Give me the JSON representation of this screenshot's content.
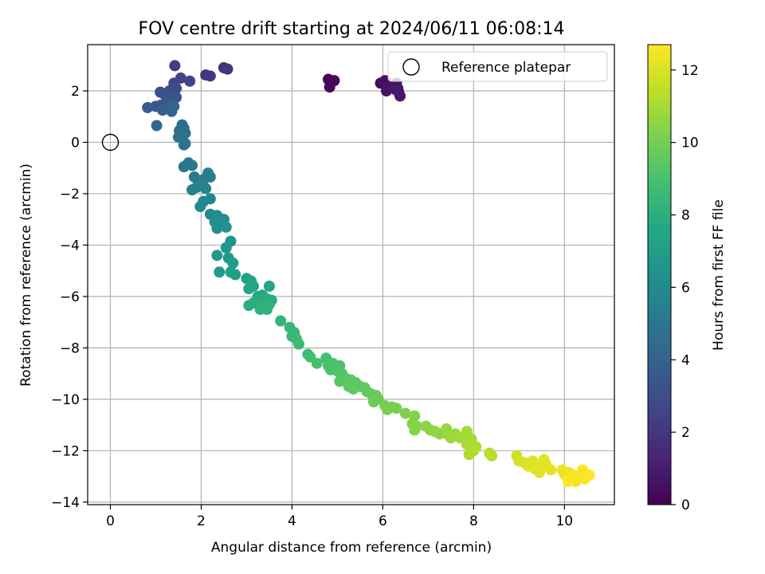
{
  "chart_data": {
    "type": "scatter",
    "title": "FOV centre drift starting at 2024/06/11 06:08:14",
    "xlabel": "Angular distance from reference (arcmin)",
    "ylabel": "Rotation from reference (arcmin)",
    "xlim": [
      -0.5,
      11.1
    ],
    "ylim": [
      -14.1,
      3.8
    ],
    "x_ticks": [
      0,
      2,
      4,
      6,
      8,
      10
    ],
    "y_ticks": [
      -14,
      -12,
      -10,
      -8,
      -6,
      -4,
      -2,
      0,
      2
    ],
    "grid": true,
    "legend": {
      "placement": "top-right",
      "entries": [
        {
          "label": "Reference platepar",
          "marker": "open-circle"
        }
      ]
    },
    "reference_point": {
      "x": 0,
      "y": 0
    },
    "colorbar": {
      "label": "Hours from first FF file",
      "colormap": "viridis",
      "range": [
        0,
        12.7
      ],
      "ticks": [
        0,
        2,
        4,
        6,
        8,
        10,
        12
      ]
    },
    "points": [
      {
        "x": 4.8,
        "y": 2.45,
        "c": 0.1
      },
      {
        "x": 4.87,
        "y": 2.35,
        "c": 0.2
      },
      {
        "x": 4.93,
        "y": 2.4,
        "c": 0.2
      },
      {
        "x": 4.83,
        "y": 2.15,
        "c": 0.3
      },
      {
        "x": 5.95,
        "y": 2.3,
        "c": 0.4
      },
      {
        "x": 6.05,
        "y": 2.4,
        "c": 0.5
      },
      {
        "x": 6.1,
        "y": 2.2,
        "c": 0.5
      },
      {
        "x": 6.08,
        "y": 2.0,
        "c": 0.6
      },
      {
        "x": 6.25,
        "y": 2.2,
        "c": 0.6
      },
      {
        "x": 6.3,
        "y": 2.3,
        "c": 0.7
      },
      {
        "x": 6.33,
        "y": 2.1,
        "c": 0.7
      },
      {
        "x": 6.35,
        "y": 1.95,
        "c": 0.8
      },
      {
        "x": 6.38,
        "y": 1.8,
        "c": 0.8
      },
      {
        "x": 6.28,
        "y": 2.05,
        "c": 0.9
      },
      {
        "x": 2.5,
        "y": 2.9,
        "c": 1.8
      },
      {
        "x": 2.58,
        "y": 2.85,
        "c": 1.9
      },
      {
        "x": 2.1,
        "y": 2.62,
        "c": 2.0
      },
      {
        "x": 2.2,
        "y": 2.58,
        "c": 2.1
      },
      {
        "x": 1.42,
        "y": 2.98,
        "c": 2.3
      },
      {
        "x": 1.55,
        "y": 2.5,
        "c": 2.5
      },
      {
        "x": 1.75,
        "y": 2.38,
        "c": 2.6
      },
      {
        "x": 1.4,
        "y": 2.3,
        "c": 2.7
      },
      {
        "x": 1.45,
        "y": 2.1,
        "c": 2.8
      },
      {
        "x": 1.3,
        "y": 2.0,
        "c": 2.9
      },
      {
        "x": 1.1,
        "y": 1.95,
        "c": 3.0
      },
      {
        "x": 1.2,
        "y": 1.85,
        "c": 3.1
      },
      {
        "x": 1.35,
        "y": 1.8,
        "c": 3.2
      },
      {
        "x": 1.45,
        "y": 1.75,
        "c": 3.3
      },
      {
        "x": 1.0,
        "y": 1.4,
        "c": 3.4
      },
      {
        "x": 1.12,
        "y": 1.45,
        "c": 3.5
      },
      {
        "x": 1.25,
        "y": 1.55,
        "c": 3.6
      },
      {
        "x": 0.82,
        "y": 1.35,
        "c": 3.7
      },
      {
        "x": 1.15,
        "y": 1.25,
        "c": 3.8
      },
      {
        "x": 1.28,
        "y": 1.35,
        "c": 3.9
      },
      {
        "x": 1.35,
        "y": 1.2,
        "c": 4.0
      },
      {
        "x": 1.4,
        "y": 1.4,
        "c": 4.1
      },
      {
        "x": 1.02,
        "y": 0.65,
        "c": 4.3
      },
      {
        "x": 1.52,
        "y": 0.45,
        "c": 4.4
      },
      {
        "x": 1.58,
        "y": 0.68,
        "c": 4.5
      },
      {
        "x": 1.62,
        "y": 0.55,
        "c": 4.5
      },
      {
        "x": 1.65,
        "y": 0.35,
        "c": 4.6
      },
      {
        "x": 1.5,
        "y": 0.2,
        "c": 4.7
      },
      {
        "x": 1.62,
        "y": -0.1,
        "c": 4.8
      },
      {
        "x": 1.65,
        "y": -0.05,
        "c": 4.9
      },
      {
        "x": 1.62,
        "y": -0.95,
        "c": 5.0
      },
      {
        "x": 1.72,
        "y": -0.8,
        "c": 5.1
      },
      {
        "x": 1.8,
        "y": -0.9,
        "c": 5.1
      },
      {
        "x": 1.85,
        "y": -1.35,
        "c": 5.2
      },
      {
        "x": 2.05,
        "y": -1.45,
        "c": 5.3
      },
      {
        "x": 2.15,
        "y": -1.2,
        "c": 5.4
      },
      {
        "x": 2.2,
        "y": -1.35,
        "c": 5.4
      },
      {
        "x": 2.0,
        "y": -1.6,
        "c": 5.5
      },
      {
        "x": 1.8,
        "y": -1.85,
        "c": 5.6
      },
      {
        "x": 1.9,
        "y": -1.75,
        "c": 5.6
      },
      {
        "x": 2.1,
        "y": -1.8,
        "c": 5.7
      },
      {
        "x": 2.2,
        "y": -2.2,
        "c": 5.8
      },
      {
        "x": 2.05,
        "y": -2.3,
        "c": 5.9
      },
      {
        "x": 1.98,
        "y": -2.5,
        "c": 5.9
      },
      {
        "x": 2.2,
        "y": -2.8,
        "c": 6.0
      },
      {
        "x": 2.35,
        "y": -2.85,
        "c": 6.1
      },
      {
        "x": 2.4,
        "y": -2.95,
        "c": 6.1
      },
      {
        "x": 2.5,
        "y": -3.0,
        "c": 6.2
      },
      {
        "x": 2.3,
        "y": -3.1,
        "c": 6.2
      },
      {
        "x": 2.45,
        "y": -3.2,
        "c": 6.3
      },
      {
        "x": 2.35,
        "y": -3.35,
        "c": 6.3
      },
      {
        "x": 2.55,
        "y": -3.3,
        "c": 6.4
      },
      {
        "x": 2.65,
        "y": -3.85,
        "c": 6.5
      },
      {
        "x": 2.55,
        "y": -4.1,
        "c": 6.6
      },
      {
        "x": 2.6,
        "y": -4.5,
        "c": 6.7
      },
      {
        "x": 2.35,
        "y": -4.4,
        "c": 6.8
      },
      {
        "x": 2.4,
        "y": -5.05,
        "c": 6.9
      },
      {
        "x": 2.7,
        "y": -4.7,
        "c": 7.0
      },
      {
        "x": 2.65,
        "y": -5.05,
        "c": 7.1
      },
      {
        "x": 2.75,
        "y": -5.15,
        "c": 7.1
      },
      {
        "x": 3.0,
        "y": -5.3,
        "c": 7.3
      },
      {
        "x": 3.1,
        "y": -5.4,
        "c": 7.4
      },
      {
        "x": 3.05,
        "y": -5.7,
        "c": 7.5
      },
      {
        "x": 3.15,
        "y": -5.6,
        "c": 7.5
      },
      {
        "x": 3.5,
        "y": -5.6,
        "c": 7.6
      },
      {
        "x": 3.25,
        "y": -6.0,
        "c": 7.7
      },
      {
        "x": 3.35,
        "y": -5.95,
        "c": 7.7
      },
      {
        "x": 3.45,
        "y": -6.1,
        "c": 7.8
      },
      {
        "x": 3.55,
        "y": -6.15,
        "c": 7.8
      },
      {
        "x": 3.15,
        "y": -6.25,
        "c": 7.9
      },
      {
        "x": 3.3,
        "y": -6.35,
        "c": 7.9
      },
      {
        "x": 3.4,
        "y": -6.4,
        "c": 8.0
      },
      {
        "x": 3.05,
        "y": -6.35,
        "c": 8.0
      },
      {
        "x": 3.5,
        "y": -6.3,
        "c": 8.1
      },
      {
        "x": 3.3,
        "y": -6.5,
        "c": 8.1
      },
      {
        "x": 3.45,
        "y": -6.5,
        "c": 8.1
      },
      {
        "x": 3.75,
        "y": -6.95,
        "c": 8.3
      },
      {
        "x": 3.95,
        "y": -7.2,
        "c": 8.4
      },
      {
        "x": 4.05,
        "y": -7.4,
        "c": 8.5
      },
      {
        "x": 4.0,
        "y": -7.55,
        "c": 8.5
      },
      {
        "x": 4.1,
        "y": -7.65,
        "c": 8.6
      },
      {
        "x": 4.15,
        "y": -7.85,
        "c": 8.6
      },
      {
        "x": 4.35,
        "y": -8.25,
        "c": 8.7
      },
      {
        "x": 4.4,
        "y": -8.35,
        "c": 8.8
      },
      {
        "x": 4.55,
        "y": -8.6,
        "c": 8.9
      },
      {
        "x": 4.75,
        "y": -8.4,
        "c": 8.9
      },
      {
        "x": 4.8,
        "y": -8.7,
        "c": 9.0
      },
      {
        "x": 4.85,
        "y": -8.85,
        "c": 9.0
      },
      {
        "x": 4.9,
        "y": -8.6,
        "c": 9.1
      },
      {
        "x": 5.05,
        "y": -8.7,
        "c": 9.1
      },
      {
        "x": 5.0,
        "y": -8.9,
        "c": 9.2
      },
      {
        "x": 5.1,
        "y": -9.0,
        "c": 9.2
      },
      {
        "x": 5.2,
        "y": -9.2,
        "c": 9.3
      },
      {
        "x": 5.05,
        "y": -9.3,
        "c": 9.3
      },
      {
        "x": 5.3,
        "y": -9.25,
        "c": 9.4
      },
      {
        "x": 5.4,
        "y": -9.35,
        "c": 9.4
      },
      {
        "x": 5.25,
        "y": -9.5,
        "c": 9.5
      },
      {
        "x": 5.5,
        "y": -9.5,
        "c": 9.5
      },
      {
        "x": 5.35,
        "y": -9.6,
        "c": 9.5
      },
      {
        "x": 5.6,
        "y": -9.55,
        "c": 9.6
      },
      {
        "x": 5.65,
        "y": -9.7,
        "c": 9.6
      },
      {
        "x": 5.75,
        "y": -9.8,
        "c": 9.7
      },
      {
        "x": 5.85,
        "y": -9.85,
        "c": 9.7
      },
      {
        "x": 5.9,
        "y": -10.0,
        "c": 9.8
      },
      {
        "x": 5.8,
        "y": -10.1,
        "c": 9.8
      },
      {
        "x": 6.05,
        "y": -10.25,
        "c": 10.0
      },
      {
        "x": 6.1,
        "y": -10.4,
        "c": 10.0
      },
      {
        "x": 6.2,
        "y": -10.3,
        "c": 10.1
      },
      {
        "x": 6.3,
        "y": -10.35,
        "c": 10.1
      },
      {
        "x": 6.5,
        "y": -10.55,
        "c": 10.2
      },
      {
        "x": 6.7,
        "y": -10.65,
        "c": 10.3
      },
      {
        "x": 6.65,
        "y": -10.95,
        "c": 10.3
      },
      {
        "x": 6.75,
        "y": -11.05,
        "c": 10.4
      },
      {
        "x": 6.7,
        "y": -11.2,
        "c": 10.4
      },
      {
        "x": 6.95,
        "y": -11.05,
        "c": 10.5
      },
      {
        "x": 7.05,
        "y": -11.2,
        "c": 10.5
      },
      {
        "x": 7.15,
        "y": -11.25,
        "c": 10.6
      },
      {
        "x": 7.25,
        "y": -11.35,
        "c": 10.6
      },
      {
        "x": 7.4,
        "y": -11.15,
        "c": 10.7
      },
      {
        "x": 7.45,
        "y": -11.4,
        "c": 10.7
      },
      {
        "x": 7.5,
        "y": -11.5,
        "c": 10.8
      },
      {
        "x": 7.6,
        "y": -11.35,
        "c": 10.8
      },
      {
        "x": 7.7,
        "y": -11.5,
        "c": 10.9
      },
      {
        "x": 7.8,
        "y": -11.45,
        "c": 10.9
      },
      {
        "x": 7.85,
        "y": -11.25,
        "c": 11.0
      },
      {
        "x": 7.95,
        "y": -11.55,
        "c": 11.0
      },
      {
        "x": 7.85,
        "y": -11.75,
        "c": 11.0
      },
      {
        "x": 7.95,
        "y": -11.95,
        "c": 11.1
      },
      {
        "x": 8.05,
        "y": -11.85,
        "c": 11.1
      },
      {
        "x": 7.9,
        "y": -12.15,
        "c": 11.2
      },
      {
        "x": 8.0,
        "y": -12.0,
        "c": 11.2
      },
      {
        "x": 8.35,
        "y": -12.1,
        "c": 11.3
      },
      {
        "x": 8.4,
        "y": -12.2,
        "c": 11.3
      },
      {
        "x": 8.95,
        "y": -12.2,
        "c": 11.8
      },
      {
        "x": 9.0,
        "y": -12.4,
        "c": 11.9
      },
      {
        "x": 9.1,
        "y": -12.45,
        "c": 11.9
      },
      {
        "x": 9.2,
        "y": -12.6,
        "c": 12.0
      },
      {
        "x": 9.3,
        "y": -12.4,
        "c": 12.0
      },
      {
        "x": 9.35,
        "y": -12.7,
        "c": 12.1
      },
      {
        "x": 9.45,
        "y": -12.85,
        "c": 12.1
      },
      {
        "x": 9.5,
        "y": -12.6,
        "c": 12.1
      },
      {
        "x": 9.55,
        "y": -12.35,
        "c": 12.2
      },
      {
        "x": 9.6,
        "y": -12.55,
        "c": 12.2
      },
      {
        "x": 9.7,
        "y": -12.75,
        "c": 12.2
      },
      {
        "x": 9.95,
        "y": -12.75,
        "c": 12.3
      },
      {
        "x": 10.0,
        "y": -12.9,
        "c": 12.3
      },
      {
        "x": 10.05,
        "y": -13.0,
        "c": 12.4
      },
      {
        "x": 10.1,
        "y": -12.85,
        "c": 12.4
      },
      {
        "x": 10.15,
        "y": -13.1,
        "c": 12.4
      },
      {
        "x": 10.2,
        "y": -12.95,
        "c": 12.5
      },
      {
        "x": 10.25,
        "y": -13.2,
        "c": 12.5
      },
      {
        "x": 10.3,
        "y": -13.1,
        "c": 12.5
      },
      {
        "x": 10.35,
        "y": -13.0,
        "c": 12.6
      },
      {
        "x": 10.4,
        "y": -12.75,
        "c": 12.6
      },
      {
        "x": 10.45,
        "y": -13.1,
        "c": 12.6
      },
      {
        "x": 10.55,
        "y": -12.95,
        "c": 12.7
      },
      {
        "x": 10.08,
        "y": -13.2,
        "c": 12.7
      }
    ]
  }
}
